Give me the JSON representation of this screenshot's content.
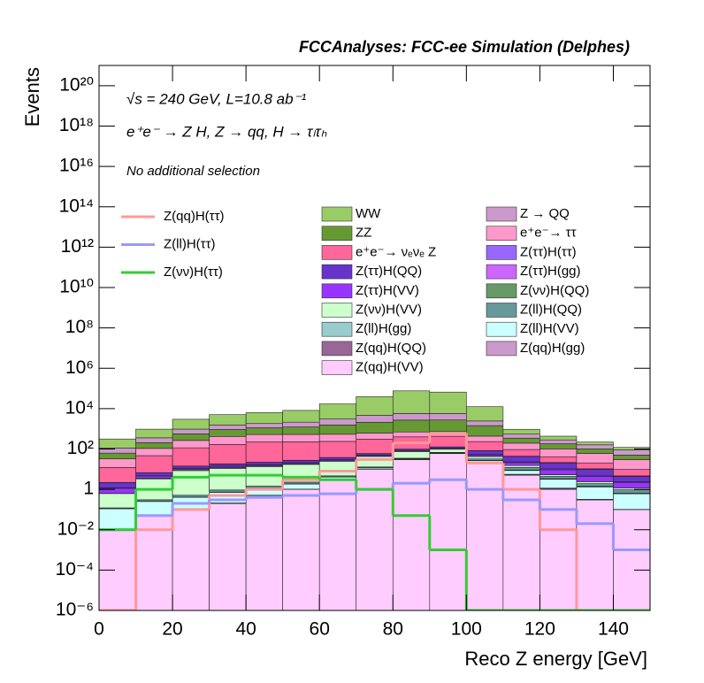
{
  "chart_data": {
    "type": "histogram",
    "title": "FCCAnalyses: FCC-ee Simulation (Delphes)",
    "annotations": [
      "√s = 240 GeV, L=10.8 ab⁻¹",
      "e⁺e⁻ → Z H, Z → qq, H → τₗτₕ",
      "No additional selection"
    ],
    "x_label": "Reco Z energy [GeV]",
    "y_label": "Events",
    "log_y": true,
    "bins": [
      0,
      10,
      20,
      30,
      40,
      50,
      60,
      70,
      80,
      90,
      100,
      110,
      120,
      130,
      140,
      150
    ],
    "xlim": [
      0,
      150
    ],
    "xticks": [
      0,
      20,
      40,
      60,
      80,
      100,
      120,
      140
    ],
    "ylim": [
      1e-06,
      1e+21
    ],
    "yticks": [
      {
        "value": 1e-06,
        "label": "10⁻⁶"
      },
      {
        "value": 0.0001,
        "label": "10⁻⁴"
      },
      {
        "value": 0.01,
        "label": "10⁻²"
      },
      1,
      {
        "value": 100,
        "label": "10²"
      },
      {
        "value": 10000,
        "label": "10⁴"
      },
      {
        "value": 1000000,
        "label": "10⁶"
      },
      {
        "value": 100000000,
        "label": "10⁸"
      },
      {
        "value": 10000000000,
        "label": "10¹⁰"
      },
      {
        "value": 1000000000000,
        "label": "10¹²"
      },
      {
        "value": 100000000000000,
        "label": "10¹⁴"
      },
      {
        "value": 1e+16,
        "label": "10¹⁶"
      },
      {
        "value": 1e+18,
        "label": "10¹⁸"
      },
      {
        "value": 1e+20,
        "label": "10²⁰"
      }
    ],
    "series": [
      {
        "name": "WW",
        "color": "#99cc66",
        "values": [
          200,
          600,
          2000,
          3500,
          4500,
          6000,
          14000,
          35000,
          70000,
          60000,
          10000,
          400,
          150,
          60,
          30
        ]
      },
      {
        "name": "Z → QQ",
        "color": "#cc99cc",
        "values": [
          50,
          150,
          400,
          600,
          700,
          900,
          1500,
          2500,
          3000,
          3000,
          1000,
          200,
          100,
          60,
          40
        ]
      },
      {
        "name": "ZZ",
        "color": "#669933",
        "values": [
          30,
          100,
          300,
          500,
          600,
          700,
          1000,
          1500,
          2000,
          2000,
          1000,
          150,
          80,
          40,
          20
        ]
      },
      {
        "name": "e⁺e⁻→ ττ",
        "color": "#ff99cc",
        "values": [
          20,
          60,
          150,
          250,
          300,
          300,
          300,
          300,
          300,
          300,
          200,
          100,
          60,
          40,
          20
        ]
      },
      {
        "name": "e⁺e⁻→ νₑνₑ Z",
        "color": "#ff6699",
        "values": [
          10,
          40,
          100,
          150,
          200,
          200,
          200,
          250,
          300,
          300,
          150,
          50,
          20,
          10,
          5
        ]
      },
      {
        "name": "Z(ττ)H(ττ)",
        "color": "#9966ff",
        "values": [
          0.01,
          0.02,
          0.05,
          0.1,
          0.2,
          0.3,
          0.5,
          1,
          2,
          2,
          1,
          1,
          1,
          0.5,
          0.3
        ]
      },
      {
        "name": "Z(ττ)H(QQ)",
        "color": "#6633cc",
        "values": [
          1,
          2,
          3,
          4,
          5,
          6,
          8,
          10,
          15,
          20,
          30,
          20,
          10,
          5,
          2
        ]
      },
      {
        "name": "Z(ττ)H(gg)",
        "color": "#cc66ff",
        "values": [
          0.05,
          0.1,
          0.2,
          0.3,
          0.4,
          0.5,
          0.6,
          0.8,
          1,
          1.5,
          2,
          2,
          1,
          0.5,
          0.2
        ]
      },
      {
        "name": "Z(ττ)H(VV)",
        "color": "#9933ff",
        "values": [
          0.5,
          1,
          1.5,
          2,
          2,
          2.5,
          3,
          4,
          5,
          6,
          8,
          6,
          4,
          2,
          1
        ]
      },
      {
        "name": "Z(νν)H(QQ)",
        "color": "#669966",
        "values": [
          0.01,
          0.3,
          1,
          1,
          1,
          1,
          1,
          1,
          0.5,
          0.1,
          0.01,
          0.001,
          0.0001,
          1e-05,
          1e-05
        ]
      },
      {
        "name": "Z(νν)H(VV)",
        "color": "#ccffcc",
        "values": [
          0.5,
          3,
          8,
          10,
          12,
          15,
          20,
          30,
          40,
          30,
          10,
          3,
          1,
          0.5,
          0.2
        ]
      },
      {
        "name": "Z(ll)H(QQ)",
        "color": "#669999",
        "values": [
          0.01,
          0.05,
          0.1,
          0.2,
          0.3,
          0.4,
          0.5,
          1,
          2,
          3,
          5,
          3,
          1,
          0.5,
          0.3
        ]
      },
      {
        "name": "Z(ll)H(gg)",
        "color": "#99cccc",
        "values": [
          0.001,
          0.005,
          0.01,
          0.02,
          0.03,
          0.05,
          0.1,
          0.2,
          0.3,
          0.5,
          1,
          0.5,
          0.2,
          0.1,
          0.05
        ]
      },
      {
        "name": "Z(ll)H(VV)",
        "color": "#ccffff",
        "values": [
          0.1,
          0.2,
          0.3,
          0.5,
          0.6,
          0.8,
          1,
          1.5,
          2,
          3,
          4,
          3,
          2,
          1,
          0.5
        ]
      },
      {
        "name": "Z(qq)H(QQ)",
        "color": "#996699",
        "values": [
          1e-05,
          0.0001,
          0.001,
          0.01,
          0.01,
          0.02,
          0.05,
          0.1,
          0.5,
          1,
          2,
          0.5,
          0.1,
          0.01,
          0.001
        ]
      },
      {
        "name": "Z(qq)H(gg)",
        "color": "#cc99cc",
        "values": [
          1e-05,
          0.0001,
          0.0005,
          0.001,
          0.002,
          0.005,
          0.01,
          0.02,
          0.05,
          0.1,
          0.2,
          0.1,
          0.05,
          0.01,
          0.001
        ]
      },
      {
        "name": "Z(qq)H(VV)",
        "color": "#ffccff",
        "values": [
          0.01,
          0.05,
          0.1,
          0.2,
          0.5,
          1,
          3,
          10,
          30,
          60,
          20,
          5,
          1,
          0.3,
          0.1
        ]
      }
    ],
    "line_series": [
      {
        "name": "Z(qq)H(ττ)",
        "color": "#ff9999",
        "values": [
          1e-06,
          0.01,
          0.1,
          0.5,
          1,
          3,
          8,
          30,
          200,
          600,
          20,
          1,
          0.01,
          1e-06,
          1e-06
        ]
      },
      {
        "name": "Z(ll)H(ττ)",
        "color": "#9999ff",
        "values": [
          0.01,
          0.05,
          0.2,
          0.3,
          0.4,
          0.5,
          0.6,
          1,
          2,
          3,
          1,
          0.3,
          0.1,
          0.02,
          0.001
        ]
      },
      {
        "name": "Z(νν)H(ττ)",
        "color": "#33cc33",
        "values": [
          0.01,
          1,
          4,
          5,
          5,
          4,
          3,
          1,
          0.05,
          0.001,
          1e-06,
          1e-06,
          1e-06,
          1e-06,
          1e-06
        ]
      }
    ]
  }
}
